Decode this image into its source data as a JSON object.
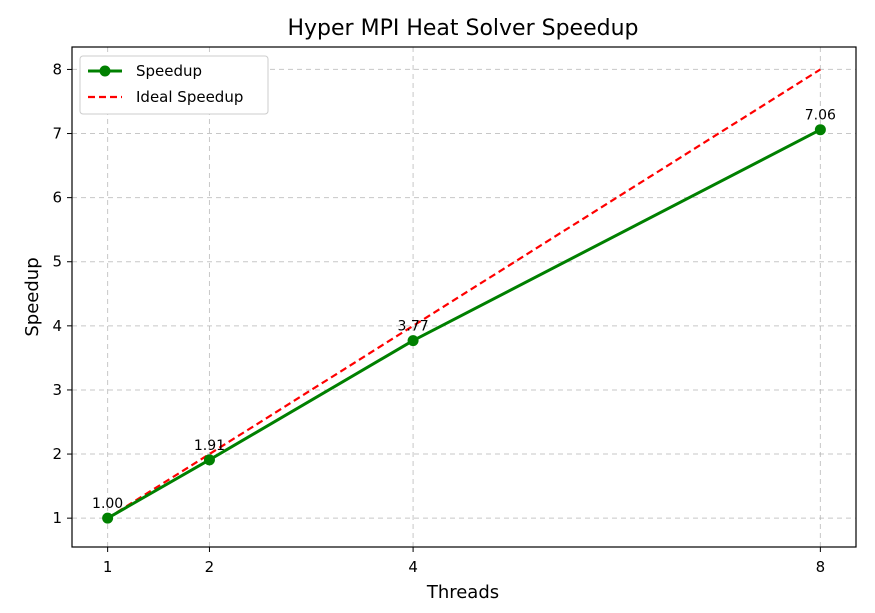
{
  "chart_data": {
    "type": "line",
    "title": "Hyper MPI Heat Solver Speedup",
    "xlabel": "Threads",
    "ylabel": "Speedup",
    "x": [
      1,
      2,
      4,
      8
    ],
    "x_ticks": [
      "1",
      "2",
      "4",
      "8"
    ],
    "y_ticks": [
      "1",
      "2",
      "3",
      "4",
      "5",
      "6",
      "7",
      "8"
    ],
    "xlim": [
      0.65,
      8.35
    ],
    "ylim": [
      0.55,
      8.35
    ],
    "grid": true,
    "legend_position": "top-left",
    "series": [
      {
        "name": "Speedup",
        "values": [
          1.0,
          1.91,
          3.77,
          7.06
        ],
        "labels": [
          "1.00",
          "1.91",
          "3.77",
          "7.06"
        ],
        "color": "#008000",
        "style": "solid",
        "marker": "circle"
      },
      {
        "name": "Ideal Speedup",
        "values": [
          1,
          2,
          4,
          8
        ],
        "color": "#ff0000",
        "style": "dashed",
        "marker": "none"
      }
    ]
  }
}
